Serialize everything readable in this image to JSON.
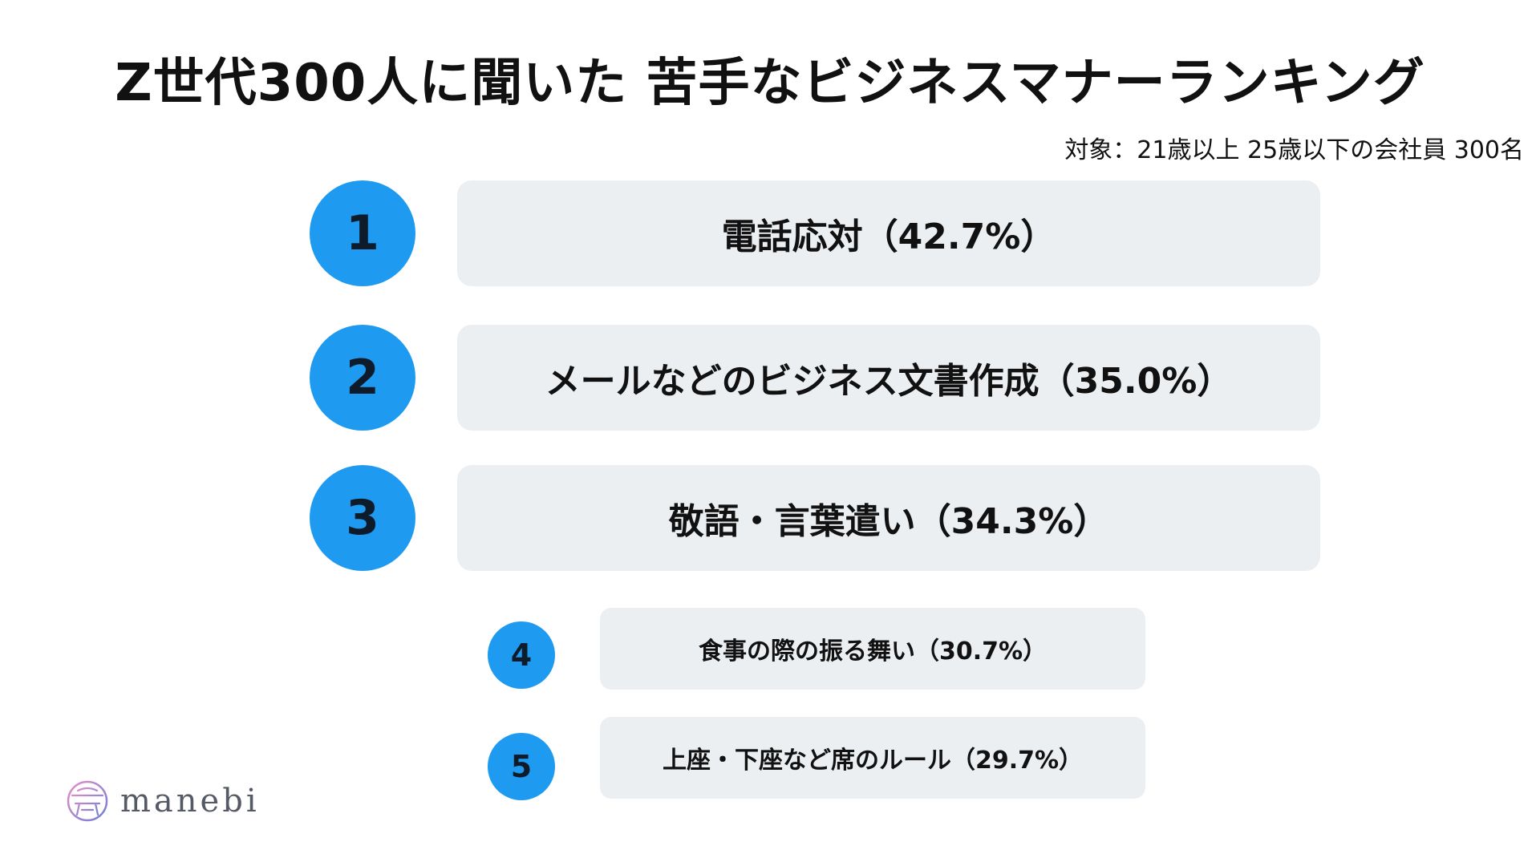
{
  "title": "Z世代300人に聞いた 苦手なビジネスマナーランキング",
  "subtitle": "対象：21歳以上 25歳以下の会社員 300名",
  "rankings": [
    {
      "rank": "1",
      "label": "電話応対（42.7%）",
      "percent": 42.7
    },
    {
      "rank": "2",
      "label": "メールなどのビジネス文書作成（35.0%）",
      "percent": 35.0
    },
    {
      "rank": "3",
      "label": "敬語・言葉遣い（34.3%）",
      "percent": 34.3
    },
    {
      "rank": "4",
      "label": "食事の際の振る舞い（30.7%）",
      "percent": 30.7
    },
    {
      "rank": "5",
      "label": "上座・下座など席のルール（29.7%）",
      "percent": 29.7
    }
  ],
  "logo": {
    "text": "manebi",
    "icon": "manebi-logo-icon"
  },
  "colors": {
    "accent": "#1e9bf0",
    "box": "#eceff2",
    "text": "#111111"
  }
}
